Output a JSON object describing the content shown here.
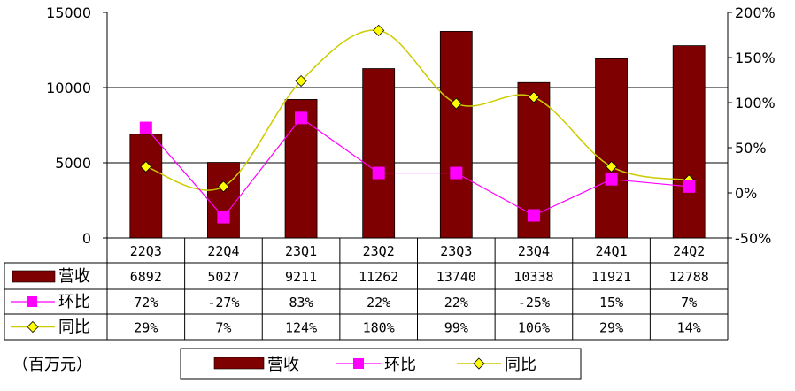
{
  "chart_data": {
    "type": "bar",
    "categories": [
      "22Q3",
      "22Q4",
      "23Q1",
      "23Q2",
      "23Q3",
      "23Q4",
      "24Q1",
      "24Q2"
    ],
    "series": [
      {
        "name": "营收",
        "type": "bar",
        "axis": "left",
        "values": [
          6892,
          5027,
          9211,
          11262,
          13740,
          10338,
          11921,
          12788
        ],
        "labels": [
          "6892",
          "5027",
          "9211",
          "11262",
          "13740",
          "10338",
          "11921",
          "12788"
        ]
      },
      {
        "name": "环比",
        "type": "line",
        "axis": "right",
        "values": [
          72,
          -27,
          83,
          22,
          22,
          -25,
          15,
          7
        ],
        "labels": [
          "72%",
          "-27%",
          "83%",
          "22%",
          "22%",
          "-25%",
          "15%",
          "7%"
        ]
      },
      {
        "name": "同比",
        "type": "line",
        "axis": "right",
        "values": [
          29,
          7,
          124,
          180,
          99,
          106,
          29,
          14
        ],
        "labels": [
          "29%",
          "7%",
          "124%",
          "180%",
          "99%",
          "106%",
          "29%",
          "14%"
        ]
      }
    ],
    "ylim": [
      0,
      15000
    ],
    "yticks": [
      "0",
      "5000",
      "10000",
      "15000"
    ],
    "y2lim": [
      -50,
      200
    ],
    "y2ticks": [
      "-50%",
      "0%",
      "50%",
      "100%",
      "150%",
      "200%"
    ],
    "unit_note": "（百万元）",
    "colors": {
      "bar": "#7f0000",
      "mom": "#ff00ff",
      "yoy": "#cccc00",
      "yoy_marker": "#ffff00"
    },
    "grid": true,
    "legend_position": "bottom"
  }
}
